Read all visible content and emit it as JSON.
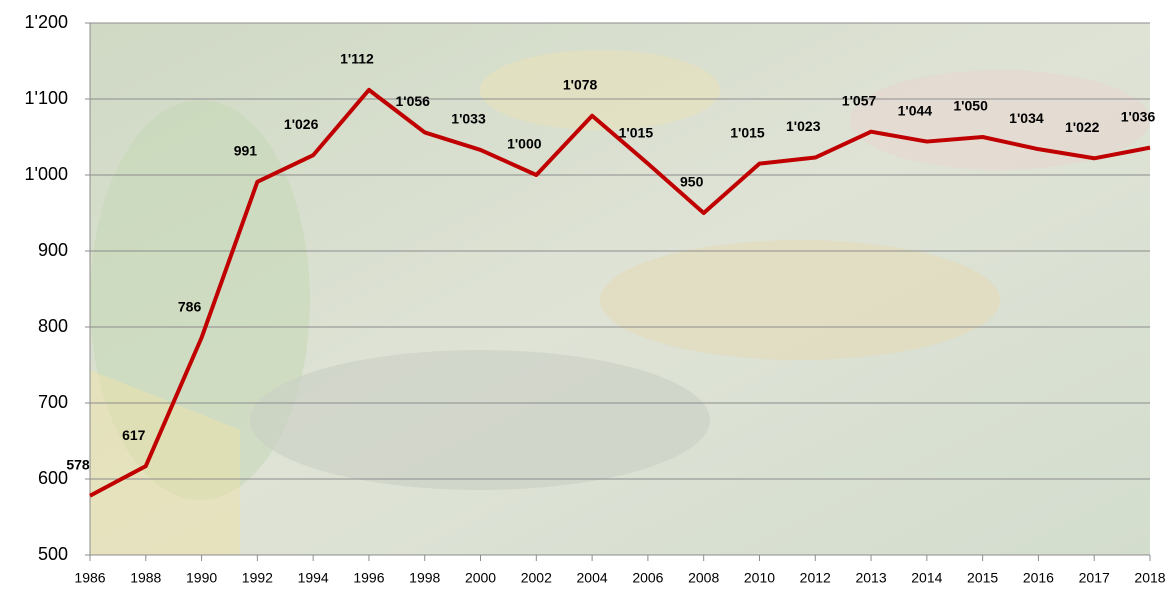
{
  "chart_data": {
    "type": "line",
    "categories": [
      "1986",
      "1988",
      "1990",
      "1992",
      "1994",
      "1996",
      "1998",
      "2000",
      "2002",
      "2004",
      "2006",
      "2008",
      "2010",
      "2012",
      "2013",
      "2014",
      "2015",
      "2016",
      "2017",
      "2018"
    ],
    "values": [
      578,
      617,
      786,
      991,
      1026,
      1112,
      1056,
      1033,
      1000,
      1078,
      1015,
      950,
      1015,
      1023,
      1057,
      1044,
      1050,
      1034,
      1022,
      1036
    ],
    "value_labels": [
      "578",
      "617",
      "786",
      "991",
      "1'026",
      "1'112",
      "1'056",
      "1'033",
      "1'000",
      "1'078",
      "1'015",
      "950",
      "1'015",
      "1'023",
      "1'057",
      "1'044",
      "1'050",
      "1'034",
      "1'022",
      "1'036"
    ],
    "color": "#c00000",
    "ylim": [
      500,
      1200
    ],
    "yticks": [
      500,
      600,
      700,
      800,
      900,
      {
        "value": 1000,
        "label": "1'000"
      },
      {
        "value": 1100,
        "label": "1'100"
      },
      {
        "value": 1200,
        "label": "1'200"
      }
    ],
    "grid": true
  }
}
